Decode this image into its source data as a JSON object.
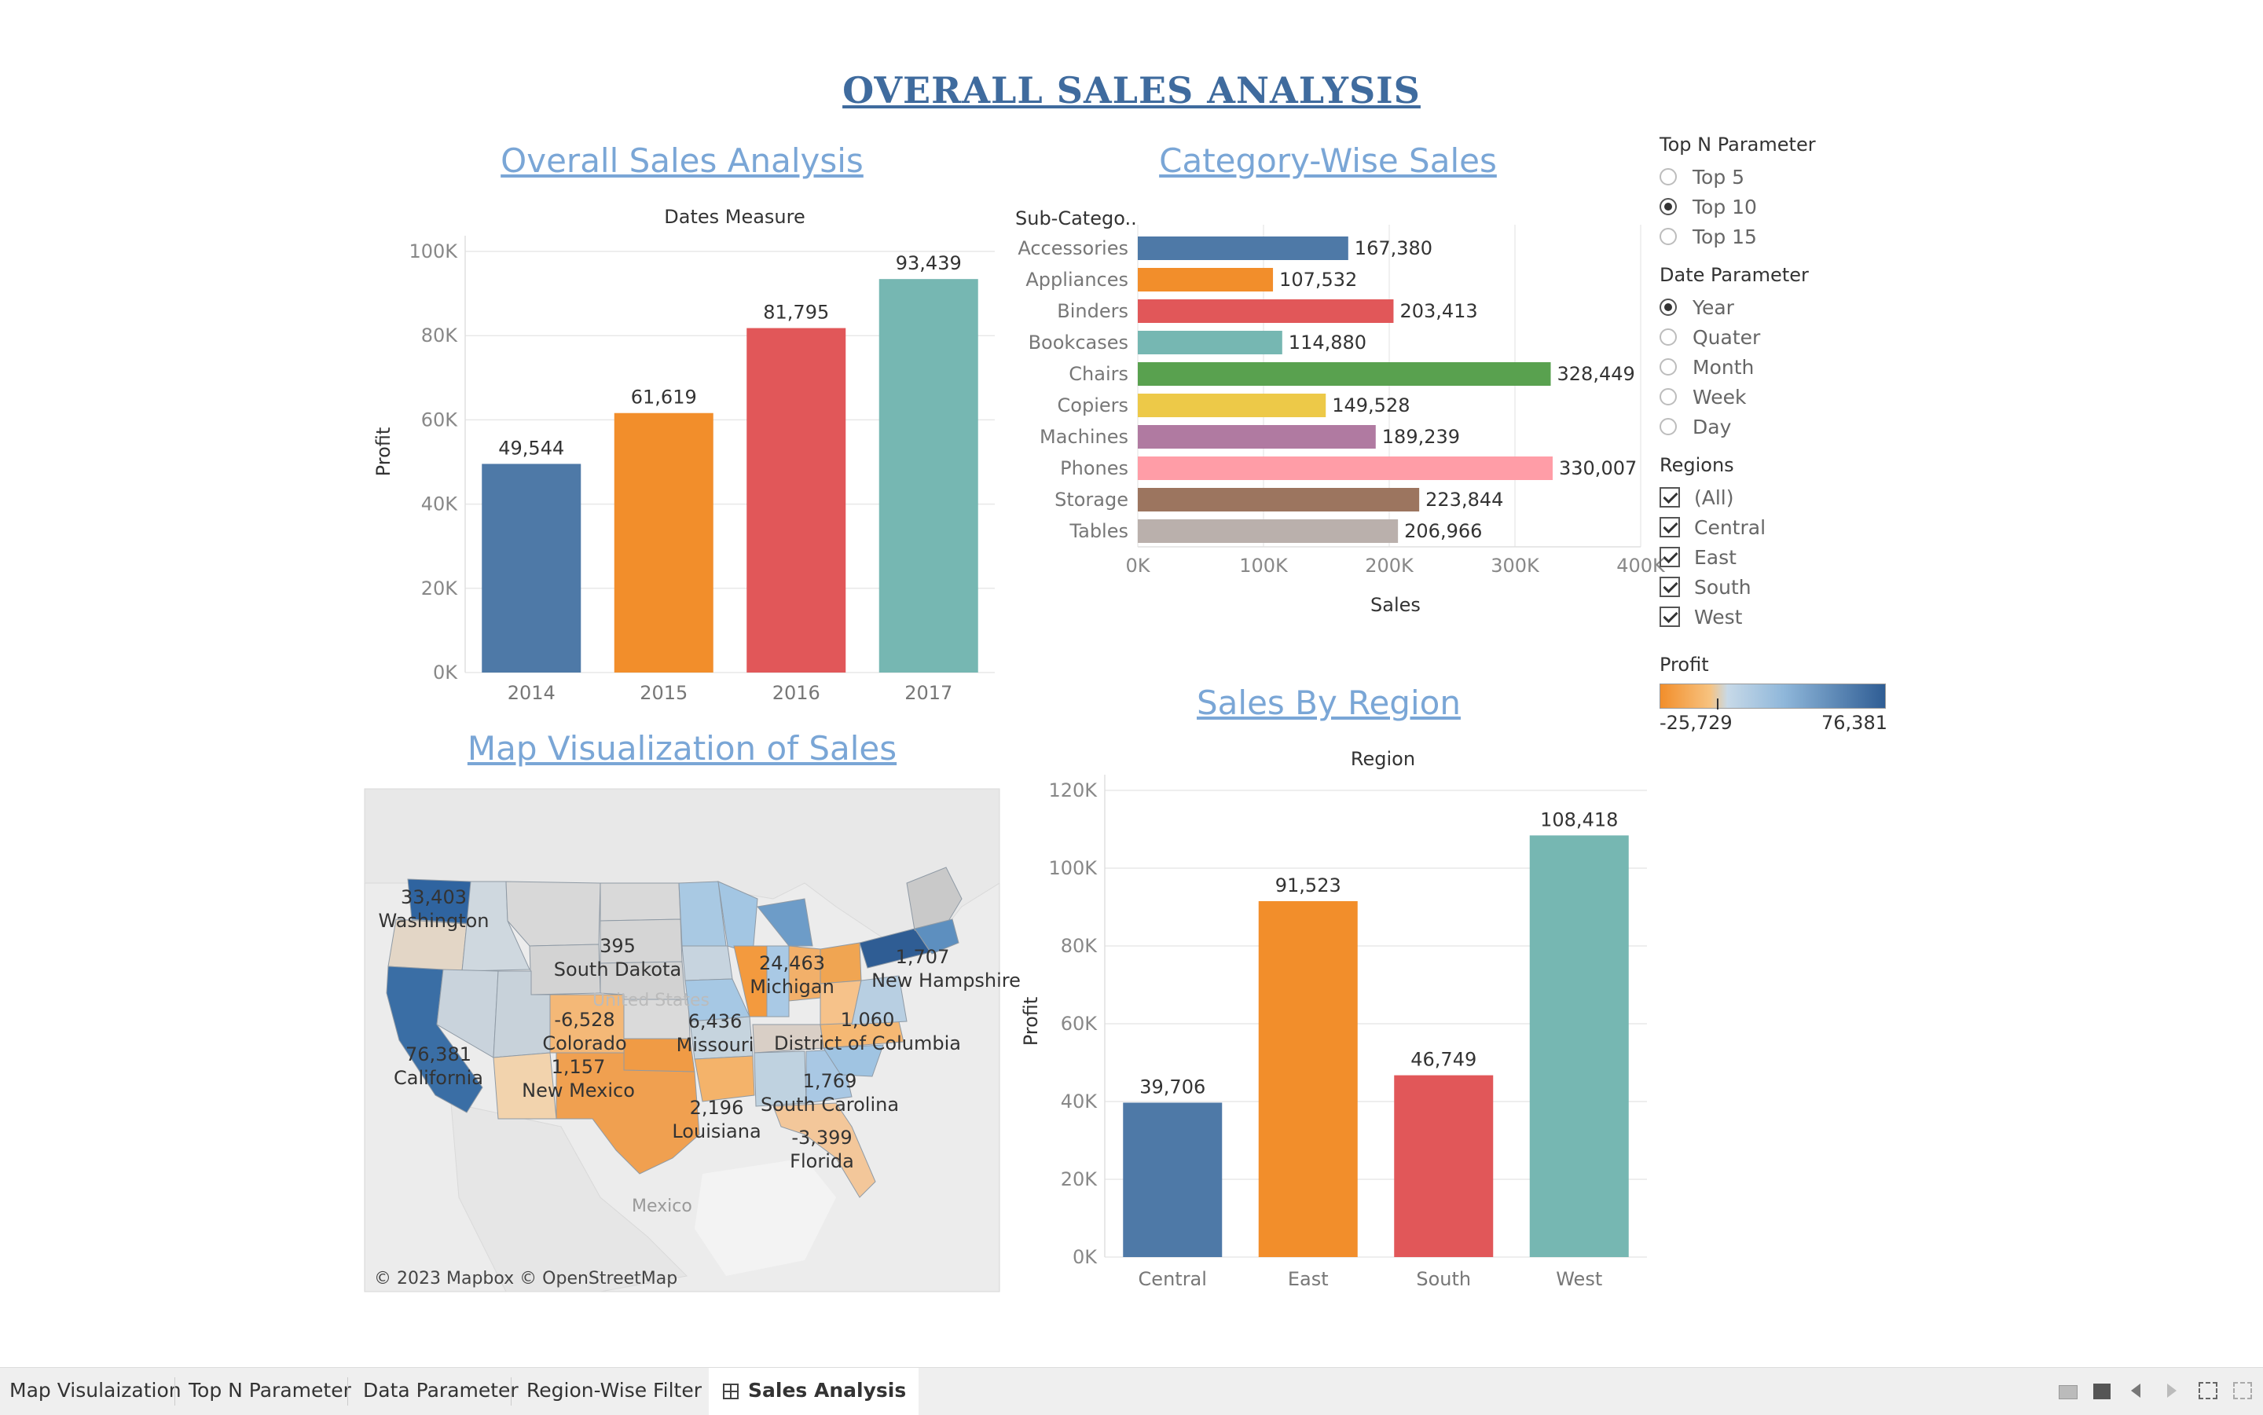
{
  "dashboard_title": "OVERALL SALES ANALYSIS",
  "colors": {
    "blue": "#4e79a7",
    "orange": "#f28e2b",
    "red": "#e15759",
    "teal": "#76b7b2",
    "green": "#59a14f",
    "yellow": "#edc948",
    "purple": "#b07aa1",
    "pink": "#ff9da7",
    "brown": "#9c755f",
    "gray": "#bab0ac"
  },
  "sheets": {
    "overall": {
      "title": "Overall Sales Analysis",
      "header": "Dates Measure"
    },
    "category": {
      "title": "Category-Wise Sales ",
      "row_header": "Sub-Catego.."
    },
    "map": {
      "title": "Map Visualization of Sales",
      "attribution": "© 2023 Mapbox © OpenStreetMap"
    },
    "region": {
      "title": "Sales By Region",
      "header": "Region"
    }
  },
  "chart_data": [
    {
      "type": "bar",
      "categories": [
        "2014",
        "2015",
        "2016",
        "2017"
      ],
      "values": [
        49544,
        61619,
        81795,
        93439
      ],
      "value_labels": [
        "49,544",
        "61,619",
        "81,795",
        "93,439"
      ],
      "ylabel": "Profit",
      "ylim": [
        0,
        100000
      ],
      "yticks": [
        {
          "v": 0,
          "l": "0K"
        },
        {
          "v": 20000,
          "l": "20K"
        },
        {
          "v": 40000,
          "l": "40K"
        },
        {
          "v": 60000,
          "l": "60K"
        },
        {
          "v": 80000,
          "l": "80K"
        },
        {
          "v": 100000,
          "l": "100K"
        }
      ],
      "colors": [
        "#4e79a7",
        "#f28e2b",
        "#e15759",
        "#76b7b2"
      ],
      "grid": true
    },
    {
      "type": "bar",
      "orientation": "horizontal",
      "categories": [
        "Accessories",
        "Appliances",
        "Binders",
        "Bookcases",
        "Chairs",
        "Copiers",
        "Machines",
        "Phones",
        "Storage",
        "Tables"
      ],
      "values": [
        167380,
        107532,
        203413,
        114880,
        328449,
        149528,
        189239,
        330007,
        223844,
        206966
      ],
      "value_labels": [
        "167,380",
        "107,532",
        "203,413",
        "114,880",
        "328,449",
        "149,528",
        "189,239",
        "330,007",
        "223,844",
        "206,966"
      ],
      "xlabel": "Sales",
      "xlim": [
        0,
        400000
      ],
      "xticks": [
        {
          "v": 0,
          "l": "0K"
        },
        {
          "v": 100000,
          "l": "100K"
        },
        {
          "v": 200000,
          "l": "200K"
        },
        {
          "v": 300000,
          "l": "300K"
        },
        {
          "v": 400000,
          "l": "400K"
        }
      ],
      "colors": [
        "#4e79a7",
        "#f28e2b",
        "#e15759",
        "#76b7b2",
        "#59a14f",
        "#edc948",
        "#b07aa1",
        "#ff9da7",
        "#9c755f",
        "#bab0ac"
      ],
      "grid": true
    },
    {
      "type": "bar",
      "categories": [
        "Central",
        "East",
        "South",
        "West"
      ],
      "values": [
        39706,
        91523,
        46749,
        108418
      ],
      "value_labels": [
        "39,706",
        "91,523",
        "46,749",
        "108,418"
      ],
      "ylabel": "Profit",
      "ylim": [
        0,
        120000
      ],
      "yticks": [
        {
          "v": 0,
          "l": "0K"
        },
        {
          "v": 20000,
          "l": "20K"
        },
        {
          "v": 40000,
          "l": "40K"
        },
        {
          "v": 60000,
          "l": "60K"
        },
        {
          "v": 80000,
          "l": "80K"
        },
        {
          "v": 100000,
          "l": "100K"
        },
        {
          "v": 120000,
          "l": "120K"
        }
      ],
      "colors": [
        "#4e79a7",
        "#f28e2b",
        "#e15759",
        "#76b7b2"
      ],
      "grid": true
    }
  ],
  "map_labels": [
    {
      "value": "33,403",
      "state": "Washington"
    },
    {
      "value": "395",
      "state": "South Dakota"
    },
    {
      "value": "24,463",
      "state": "Michigan"
    },
    {
      "value": "1,707",
      "state": "New Hampshire"
    },
    {
      "value": "-6,528",
      "state": "Colorado"
    },
    {
      "value": "6,436",
      "state": "Missouri"
    },
    {
      "value": "1,060",
      "state": "District of Columbia"
    },
    {
      "value": "76,381",
      "state": "California"
    },
    {
      "value": "1,157",
      "state": "New Mexico"
    },
    {
      "value": "1,769",
      "state": "South Carolina"
    },
    {
      "value": "2,196",
      "state": "Louisiana"
    },
    {
      "value": "-3,399",
      "state": "Florida"
    }
  ],
  "map_extra": {
    "country": "United States",
    "neighbor": "Mexico"
  },
  "filters": {
    "topn": {
      "title": "Top N Parameter",
      "options": [
        "Top 5",
        "Top 10",
        "Top 15"
      ],
      "selected": "Top 10"
    },
    "date": {
      "title": "Date Parameter",
      "options": [
        "Year",
        "Quater",
        "Month",
        "Week",
        "Day"
      ],
      "selected": "Year"
    },
    "regions": {
      "title": "Regions",
      "options": [
        "(All)",
        "Central",
        "East",
        "South",
        "West"
      ]
    },
    "profit_legend": {
      "title": "Profit",
      "min": "-25,729",
      "max": "76,381"
    }
  },
  "tabs": [
    {
      "label": "Map Visulaization",
      "active": false
    },
    {
      "label": "Top N Parameter",
      "active": false
    },
    {
      "label": "Data Parameter",
      "active": false
    },
    {
      "label": "Region-Wise Filter",
      "active": false
    },
    {
      "label": "Sales Analysis",
      "active": true
    }
  ]
}
